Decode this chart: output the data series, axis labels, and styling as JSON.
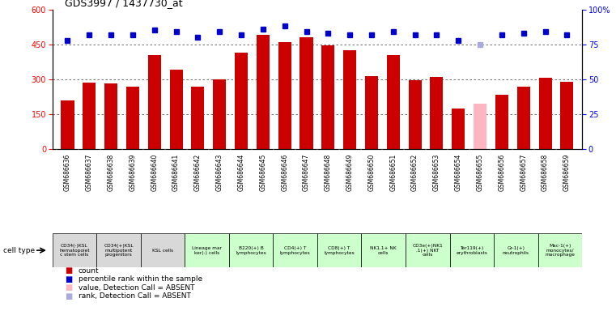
{
  "title": "GDS3997 / 1437730_at",
  "gsm_labels": [
    "GSM686636",
    "GSM686637",
    "GSM686638",
    "GSM686639",
    "GSM686640",
    "GSM686641",
    "GSM686642",
    "GSM686643",
    "GSM686644",
    "GSM686645",
    "GSM686646",
    "GSM686647",
    "GSM686648",
    "GSM686649",
    "GSM686650",
    "GSM686651",
    "GSM686652",
    "GSM686653",
    "GSM686654",
    "GSM686655",
    "GSM686656",
    "GSM686657",
    "GSM686658",
    "GSM686659"
  ],
  "bar_values": [
    210,
    285,
    283,
    270,
    405,
    340,
    270,
    300,
    415,
    490,
    460,
    480,
    445,
    425,
    315,
    405,
    295,
    310,
    175,
    195,
    235,
    270,
    305,
    290
  ],
  "bar_colors": [
    "#cc0000",
    "#cc0000",
    "#cc0000",
    "#cc0000",
    "#cc0000",
    "#cc0000",
    "#cc0000",
    "#cc0000",
    "#cc0000",
    "#cc0000",
    "#cc0000",
    "#cc0000",
    "#cc0000",
    "#cc0000",
    "#cc0000",
    "#cc0000",
    "#cc0000",
    "#cc0000",
    "#cc0000",
    "#ffb6c1",
    "#cc0000",
    "#cc0000",
    "#cc0000",
    "#cc0000"
  ],
  "percentile_values": [
    78,
    82,
    82,
    82,
    85,
    84,
    80,
    84,
    82,
    86,
    88,
    84,
    83,
    82,
    82,
    84,
    82,
    82,
    78,
    75,
    82,
    83,
    84,
    82
  ],
  "percentile_colors": [
    "#0000cc",
    "#0000cc",
    "#0000cc",
    "#0000cc",
    "#0000cc",
    "#0000cc",
    "#0000cc",
    "#0000cc",
    "#0000cc",
    "#0000cc",
    "#0000cc",
    "#0000cc",
    "#0000cc",
    "#0000cc",
    "#0000cc",
    "#0000cc",
    "#0000cc",
    "#0000cc",
    "#0000cc",
    "#aaaadd",
    "#0000cc",
    "#0000cc",
    "#0000cc",
    "#0000cc"
  ],
  "ylim_left": [
    0,
    600
  ],
  "ylim_right": [
    0,
    100
  ],
  "yticks_left": [
    0,
    150,
    300,
    450,
    600
  ],
  "yticks_right": [
    0,
    25,
    50,
    75,
    100
  ],
  "group_defs": [
    {
      "label": "CD34(-)KSL\nhematopoiet\nc stem cells",
      "count": 2,
      "color": "#d8d8d8"
    },
    {
      "label": "CD34(+)KSL\nmultipotent\nprogenitors",
      "count": 2,
      "color": "#d8d8d8"
    },
    {
      "label": "KSL cells",
      "count": 2,
      "color": "#d8d8d8"
    },
    {
      "label": "Lineage mar\nker(-) cells",
      "count": 2,
      "color": "#ccffcc"
    },
    {
      "label": "B220(+) B\nlymphocytes",
      "count": 2,
      "color": "#ccffcc"
    },
    {
      "label": "CD4(+) T\nlymphocytes",
      "count": 2,
      "color": "#ccffcc"
    },
    {
      "label": "CD8(+) T\nlymphocytes",
      "count": 2,
      "color": "#ccffcc"
    },
    {
      "label": "NK1.1+ NK\ncells",
      "count": 2,
      "color": "#ccffcc"
    },
    {
      "label": "CD3e(+)NK1\n.1(+) NKT\ncells",
      "count": 2,
      "color": "#ccffcc"
    },
    {
      "label": "Ter119(+)\nerythroblasts",
      "count": 2,
      "color": "#ccffcc"
    },
    {
      "label": "Gr-1(+)\nneutrophils",
      "count": 2,
      "color": "#ccffcc"
    },
    {
      "label": "Mac-1(+)\nmonocytes/\nmacrophage",
      "count": 2,
      "color": "#ccffcc"
    }
  ],
  "gsm_bg_color": "#d8d8d8",
  "background_color": "#ffffff",
  "grid_color": "#555555",
  "bar_width": 0.6,
  "percentile_marker_size": 5,
  "legend_items": [
    {
      "label": "count",
      "color": "#cc0000"
    },
    {
      "label": "percentile rank within the sample",
      "color": "#0000cc"
    },
    {
      "label": "value, Detection Call = ABSENT",
      "color": "#ffb6c1"
    },
    {
      "label": "rank, Detection Call = ABSENT",
      "color": "#aaaadd"
    }
  ]
}
